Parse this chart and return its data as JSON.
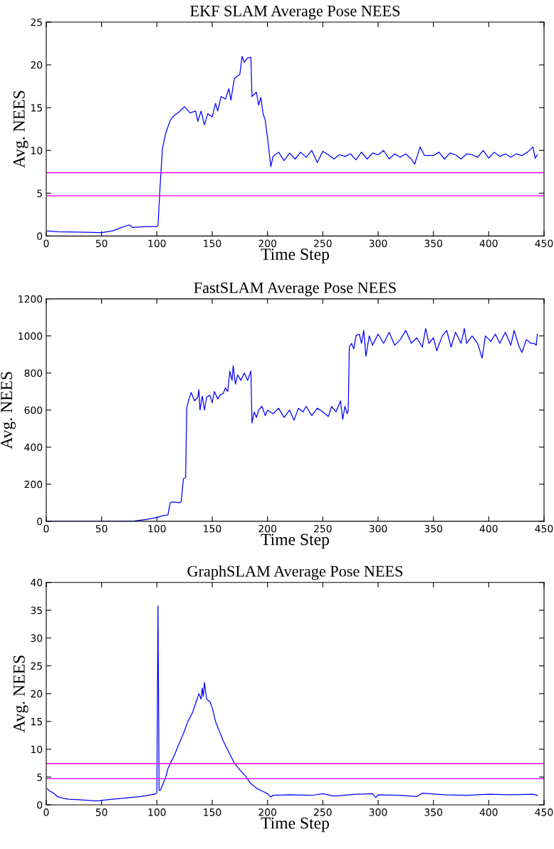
{
  "chart_data": [
    {
      "type": "line",
      "title": "EKF SLAM Average Pose NEES",
      "xlabel": "Time Step",
      "ylabel": "Avg. NEES",
      "xlim": [
        0,
        450
      ],
      "ylim": [
        0,
        25
      ],
      "xticks": [
        0,
        50,
        100,
        150,
        200,
        250,
        300,
        350,
        400,
        450
      ],
      "yticks": [
        0,
        5,
        10,
        15,
        20,
        25
      ],
      "grid": false,
      "legend": false,
      "ref_lines": [
        {
          "axis": "y",
          "value": 7.4,
          "color": "#ff00ff"
        },
        {
          "axis": "y",
          "value": 4.7,
          "color": "#ff00ff"
        }
      ],
      "series": [
        {
          "color": "#0000ff",
          "x": [
            1,
            10,
            30,
            50,
            60,
            68,
            75,
            78,
            90,
            100,
            101,
            103,
            105,
            108,
            112,
            115,
            120,
            125,
            130,
            135,
            137,
            140,
            143,
            146,
            150,
            153,
            155,
            158,
            162,
            165,
            167,
            170,
            175,
            177,
            179,
            182,
            185,
            186,
            190,
            192,
            194,
            196,
            198,
            200,
            203,
            205,
            210,
            215,
            220,
            225,
            230,
            235,
            240,
            245,
            250,
            255,
            260,
            265,
            270,
            275,
            280,
            285,
            290,
            295,
            300,
            305,
            310,
            315,
            320,
            325,
            330,
            333,
            338,
            342,
            350,
            355,
            360,
            365,
            370,
            375,
            380,
            385,
            390,
            395,
            400,
            405,
            410,
            415,
            420,
            425,
            430,
            435,
            440,
            442,
            444
          ],
          "values": [
            0.6,
            0.5,
            0.45,
            0.4,
            0.6,
            1.0,
            1.3,
            1.0,
            1.1,
            1.1,
            1.2,
            6,
            10.2,
            12,
            13.5,
            14,
            14.5,
            15.1,
            14.4,
            14.6,
            13.4,
            14.6,
            13.0,
            14.3,
            13.9,
            15.5,
            14.6,
            16.3,
            16.0,
            17.2,
            15.9,
            18.4,
            18.9,
            21.0,
            20.3,
            20.8,
            20.9,
            16.3,
            16.8,
            15.3,
            16.2,
            14.3,
            13.5,
            11.5,
            8.1,
            9.3,
            9.8,
            8.8,
            9.7,
            9.0,
            9.8,
            9.2,
            10.0,
            8.6,
            9.9,
            9.5,
            9.0,
            9.5,
            9.3,
            9.6,
            8.9,
            9.8,
            9.0,
            9.7,
            9.5,
            10.0,
            9.0,
            9.6,
            9.2,
            9.6,
            9.0,
            8.4,
            10.4,
            9.4,
            9.4,
            9.8,
            9.0,
            9.7,
            9.5,
            9.0,
            9.6,
            9.5,
            9.2,
            10.0,
            9.1,
            9.8,
            9.3,
            9.6,
            9.2,
            9.6,
            9.4,
            9.8,
            10.4,
            9.1,
            9.5
          ]
        }
      ]
    },
    {
      "type": "line",
      "title": "FastSLAM Average Pose NEES",
      "xlabel": "Time Step",
      "ylabel": "Avg. NEES",
      "xlim": [
        0,
        450
      ],
      "ylim": [
        0,
        1200
      ],
      "xticks": [
        0,
        50,
        100,
        150,
        200,
        250,
        300,
        350,
        400,
        450
      ],
      "yticks": [
        0,
        200,
        400,
        600,
        800,
        1000,
        1200
      ],
      "grid": false,
      "legend": false,
      "series": [
        {
          "color": "#0000ff",
          "x": [
            1,
            50,
            80,
            90,
            100,
            105,
            110,
            112,
            115,
            120,
            122,
            124,
            126,
            127,
            129,
            131,
            134,
            137,
            138,
            139,
            141,
            143,
            145,
            148,
            150,
            152,
            155,
            157,
            160,
            162,
            164,
            166,
            168,
            169,
            171,
            173,
            176,
            179,
            182,
            185,
            186,
            188,
            190,
            192,
            195,
            198,
            200,
            205,
            210,
            215,
            220,
            224,
            228,
            232,
            235,
            240,
            245,
            250,
            255,
            258,
            262,
            266,
            268,
            270,
            272,
            273,
            274,
            276,
            278,
            280,
            283,
            285,
            287,
            289,
            292,
            295,
            300,
            305,
            310,
            315,
            320,
            325,
            330,
            335,
            340,
            343,
            346,
            350,
            353,
            358,
            362,
            366,
            370,
            375,
            378,
            380,
            385,
            390,
            394,
            397,
            402,
            406,
            410,
            415,
            420,
            423,
            427,
            430,
            434,
            438,
            441,
            443,
            444
          ],
          "values": [
            0,
            0,
            2,
            10,
            20,
            30,
            35,
            100,
            105,
            100,
            105,
            230,
            235,
            610,
            660,
            695,
            650,
            670,
            710,
            600,
            675,
            600,
            670,
            680,
            640,
            700,
            660,
            680,
            690,
            720,
            700,
            810,
            760,
            840,
            740,
            790,
            760,
            800,
            760,
            810,
            530,
            590,
            560,
            600,
            620,
            570,
            600,
            580,
            610,
            560,
            600,
            545,
            610,
            590,
            620,
            570,
            610,
            590,
            565,
            620,
            590,
            650,
            550,
            620,
            580,
            600,
            940,
            960,
            930,
            1000,
            1010,
            960,
            1030,
            890,
            1000,
            950,
            1010,
            960,
            1020,
            950,
            980,
            1030,
            960,
            990,
            940,
            1040,
            960,
            990,
            920,
            1000,
            1030,
            940,
            1020,
            960,
            1040,
            960,
            1000,
            960,
            880,
            1000,
            970,
            1010,
            960,
            1020,
            950,
            1030,
            950,
            910,
            980,
            960,
            960,
            950,
            1010
          ]
        }
      ]
    },
    {
      "type": "line",
      "title": "GraphSLAM Average Pose NEES",
      "xlabel": "Time Step",
      "ylabel": "Avg. NEES",
      "xlim": [
        0,
        450
      ],
      "ylim": [
        0,
        40
      ],
      "xticks": [
        0,
        50,
        100,
        150,
        200,
        250,
        300,
        350,
        400,
        450
      ],
      "yticks": [
        0,
        5,
        10,
        15,
        20,
        25,
        30,
        35,
        40
      ],
      "grid": false,
      "legend": false,
      "ref_lines": [
        {
          "axis": "y",
          "value": 7.4,
          "color": "#ff00ff"
        },
        {
          "axis": "y",
          "value": 4.7,
          "color": "#ff00ff"
        }
      ],
      "series": [
        {
          "color": "#0000ff",
          "x": [
            1,
            3,
            6,
            10,
            15,
            20,
            30,
            40,
            45,
            55,
            65,
            75,
            85,
            95,
            99,
            100,
            101,
            102,
            103,
            105,
            108,
            110,
            113,
            116,
            120,
            124,
            128,
            132,
            136,
            138,
            140,
            141,
            142,
            143,
            145,
            148,
            150,
            153,
            156,
            160,
            165,
            170,
            175,
            180,
            185,
            190,
            195,
            200,
            203,
            205,
            220,
            240,
            250,
            260,
            280,
            295,
            298,
            300,
            320,
            335,
            340,
            360,
            380,
            400,
            420,
            440,
            444
          ],
          "values": [
            2.9,
            2.5,
            2.2,
            1.5,
            1.2,
            1.0,
            0.9,
            0.8,
            0.7,
            0.9,
            1.1,
            1.3,
            1.5,
            1.8,
            2.0,
            2.2,
            35.8,
            2.6,
            2.6,
            3.5,
            5,
            6.5,
            7.8,
            9.0,
            11.0,
            12.8,
            15.0,
            16.5,
            18.8,
            20.0,
            19.0,
            21.0,
            19.5,
            22.0,
            19.0,
            18.5,
            17.5,
            15.0,
            13.5,
            11.5,
            9.5,
            7.5,
            6.3,
            5.2,
            3.8,
            3.0,
            2.5,
            2.0,
            1.4,
            1.7,
            1.8,
            1.7,
            2.0,
            1.6,
            1.9,
            2.0,
            1.3,
            1.8,
            1.7,
            1.5,
            2.1,
            1.8,
            1.7,
            1.9,
            1.8,
            1.9,
            1.7
          ]
        }
      ]
    }
  ]
}
